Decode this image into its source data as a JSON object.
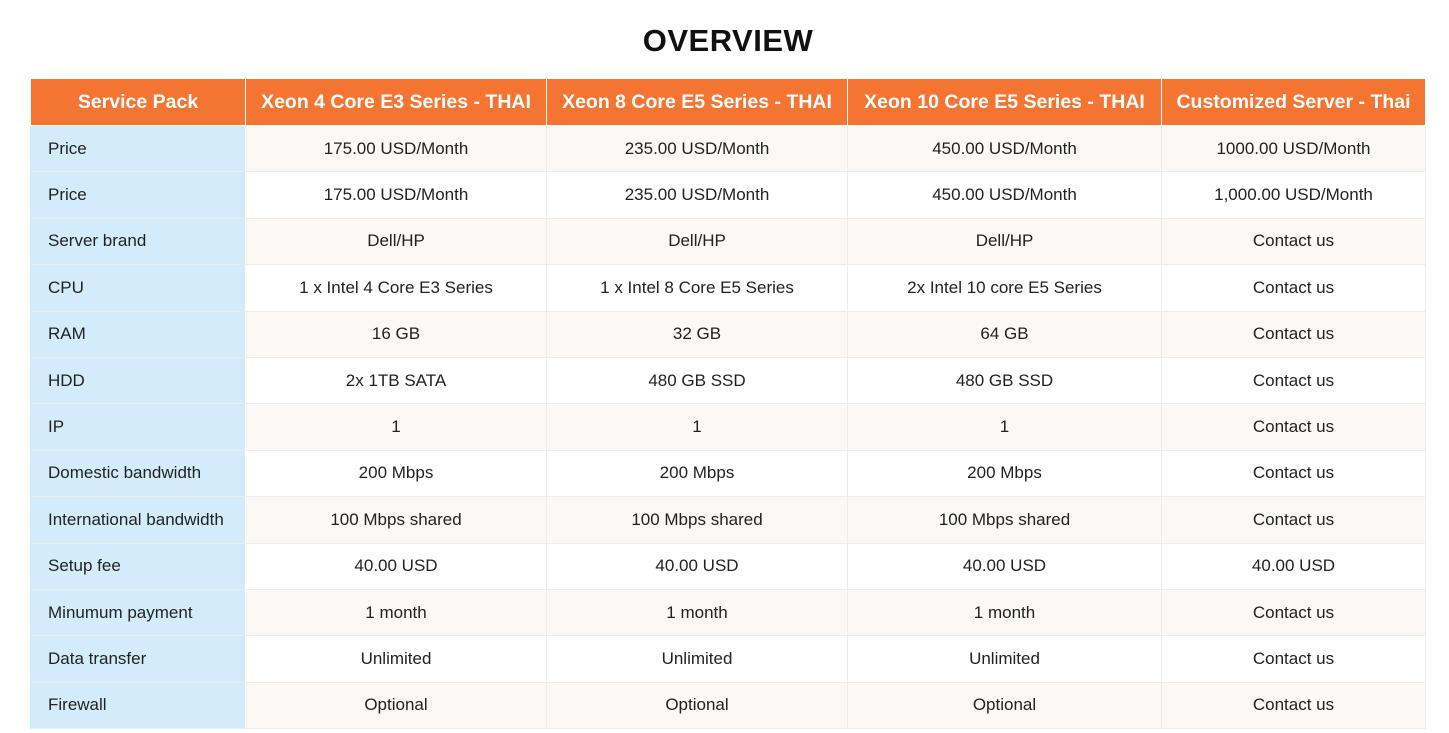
{
  "page": {
    "title": "OVERVIEW"
  },
  "colors": {
    "header_bg": "#f47432",
    "header_text": "#ffffff",
    "label_col_bg": "#d3ecfb",
    "row_alt_bg": "#fcf8f5",
    "row_bg": "#ffffff"
  },
  "table": {
    "headers": [
      "Service Pack",
      "Xeon 4 Core E3 Series - THAI",
      "Xeon 8 Core E5 Series - THAI",
      "Xeon 10 Core E5 Series - THAI",
      "Customized Server - Thai"
    ],
    "rows": [
      [
        "Price",
        "175.00 USD/Month",
        "235.00 USD/Month",
        "450.00 USD/Month",
        "1000.00 USD/Month"
      ],
      [
        "Price",
        "175.00 USD/Month",
        "235.00 USD/Month",
        "450.00 USD/Month",
        "1,000.00 USD/Month"
      ],
      [
        "Server brand",
        "Dell/HP",
        "Dell/HP",
        "Dell/HP",
        "Contact us"
      ],
      [
        "CPU",
        "1 x Intel 4 Core E3 Series",
        "1 x Intel 8 Core E5 Series",
        "2x Intel 10 core E5 Series",
        "Contact us"
      ],
      [
        "RAM",
        "16 GB",
        "32 GB",
        "64 GB",
        "Contact us"
      ],
      [
        "HDD",
        "2x 1TB SATA",
        "480 GB SSD",
        "480 GB SSD",
        "Contact us"
      ],
      [
        "IP",
        "1",
        "1",
        "1",
        "Contact us"
      ],
      [
        "Domestic bandwidth",
        "200 Mbps",
        "200 Mbps",
        "200 Mbps",
        "Contact us"
      ],
      [
        "International bandwidth",
        "100 Mbps shared",
        "100 Mbps shared",
        "100 Mbps shared",
        "Contact us"
      ],
      [
        "Setup fee",
        "40.00 USD",
        "40.00 USD",
        "40.00 USD",
        "40.00 USD"
      ],
      [
        "Minumum payment",
        "1 month",
        "1 month",
        "1 month",
        "Contact us"
      ],
      [
        "Data transfer",
        "Unlimited",
        "Unlimited",
        "Unlimited",
        "Contact us"
      ],
      [
        "Firewall",
        "Optional",
        "Optional",
        "Optional",
        "Contact us"
      ]
    ]
  }
}
